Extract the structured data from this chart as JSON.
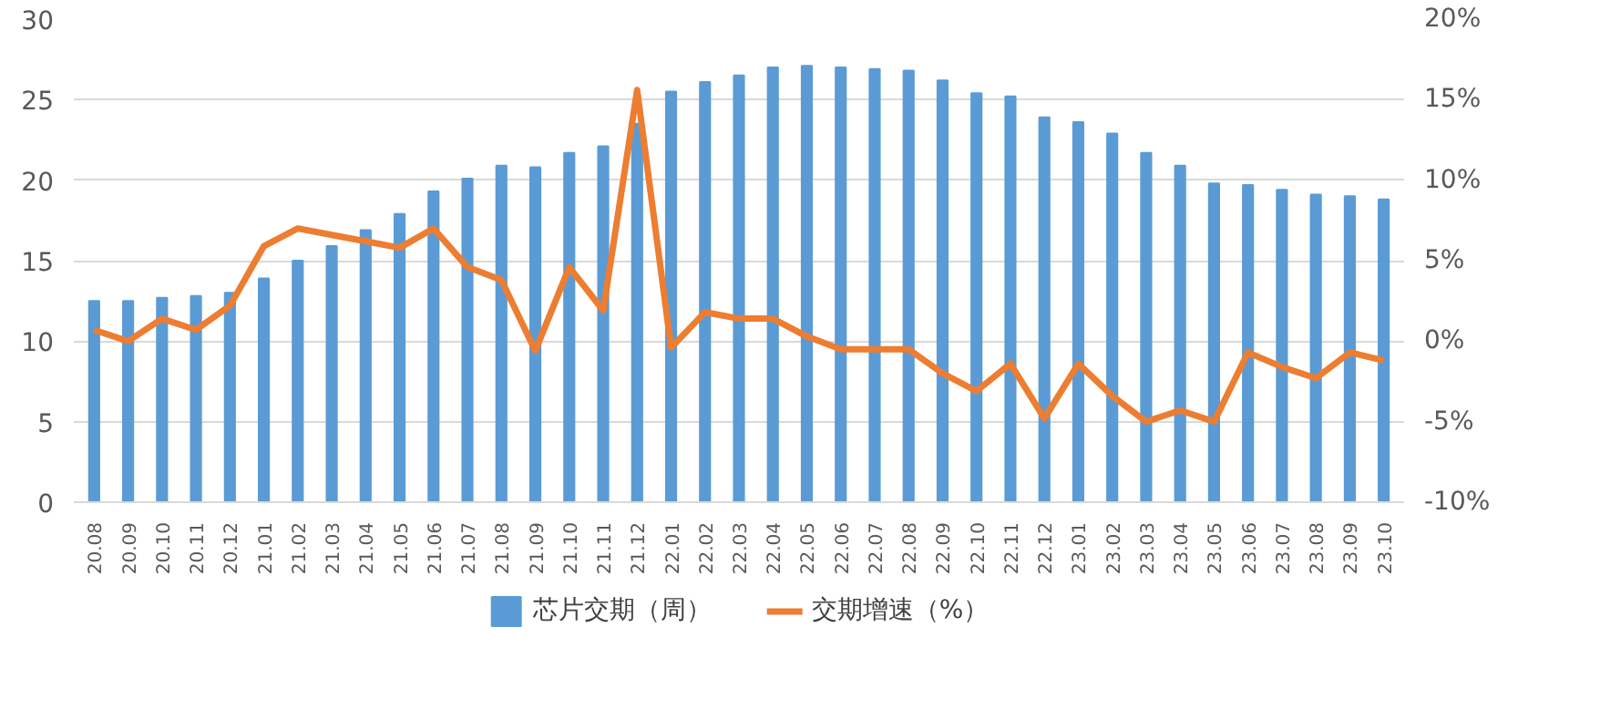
{
  "chart_data": {
    "type": "bar",
    "categories": [
      "20.08",
      "20.09",
      "20.10",
      "20.11",
      "20.12",
      "21.01",
      "21.02",
      "21.03",
      "21.04",
      "21.05",
      "21.06",
      "21.07",
      "21.08",
      "21.09",
      "21.10",
      "21.11",
      "21.12",
      "22.01",
      "22.02",
      "22.03",
      "22.04",
      "22.05",
      "22.06",
      "22.07",
      "22.08",
      "22.09",
      "22.10",
      "22.11",
      "22.12",
      "23.01",
      "23.02",
      "23.03",
      "23.04",
      "23.05",
      "23.06",
      "23.07",
      "23.08",
      "23.09",
      "23.10"
    ],
    "series": [
      {
        "name": "芯片交期（周）",
        "color": "#5b9bd5",
        "values": [
          12.5,
          12.5,
          12.7,
          12.8,
          13.0,
          13.9,
          15.0,
          15.9,
          16.9,
          17.9,
          19.3,
          20.1,
          20.9,
          20.8,
          21.7,
          22.1,
          23.5,
          25.5,
          26.1,
          26.5,
          27.0,
          27.1,
          27.0,
          26.9,
          26.8,
          26.2,
          25.4,
          25.2,
          23.9,
          23.6,
          22.9,
          21.7,
          20.9,
          19.8,
          19.7,
          19.4,
          19.1,
          19.0,
          18.8
        ]
      },
      {
        "name": "交期增速（%）",
        "type": "line",
        "axis": "y2",
        "color": "#ed7d31",
        "values": [
          0.7,
          0.0,
          1.4,
          0.7,
          2.2,
          5.9,
          7.0,
          6.6,
          6.2,
          5.8,
          7.0,
          4.6,
          3.8,
          -0.6,
          4.6,
          1.9,
          15.6,
          -0.4,
          1.8,
          1.4,
          1.4,
          0.3,
          -0.5,
          -0.5,
          -0.5,
          -2.0,
          -3.1,
          -1.4,
          -4.8,
          -1.4,
          -3.4,
          -5.0,
          -4.3,
          -5.0,
          -0.7,
          -1.6,
          -2.3,
          -0.7,
          -1.2
        ]
      }
    ],
    "ylim": [
      0,
      30
    ],
    "yticks": [
      0,
      5,
      10,
      15,
      20,
      25,
      30
    ],
    "y2lim": [
      -10,
      20
    ],
    "y2ticks": [
      {
        "value": -10,
        "label": "-10%"
      },
      {
        "value": -5,
        "label": "-5%"
      },
      {
        "value": 0,
        "label": "0%"
      },
      {
        "value": 5,
        "label": "5%"
      },
      {
        "value": 10,
        "label": "10%"
      },
      {
        "value": 15,
        "label": "15%"
      },
      {
        "value": 20,
        "label": "20%"
      }
    ],
    "grid": "y",
    "legend": "bottom",
    "marker": "none",
    "line_style": "solid"
  }
}
